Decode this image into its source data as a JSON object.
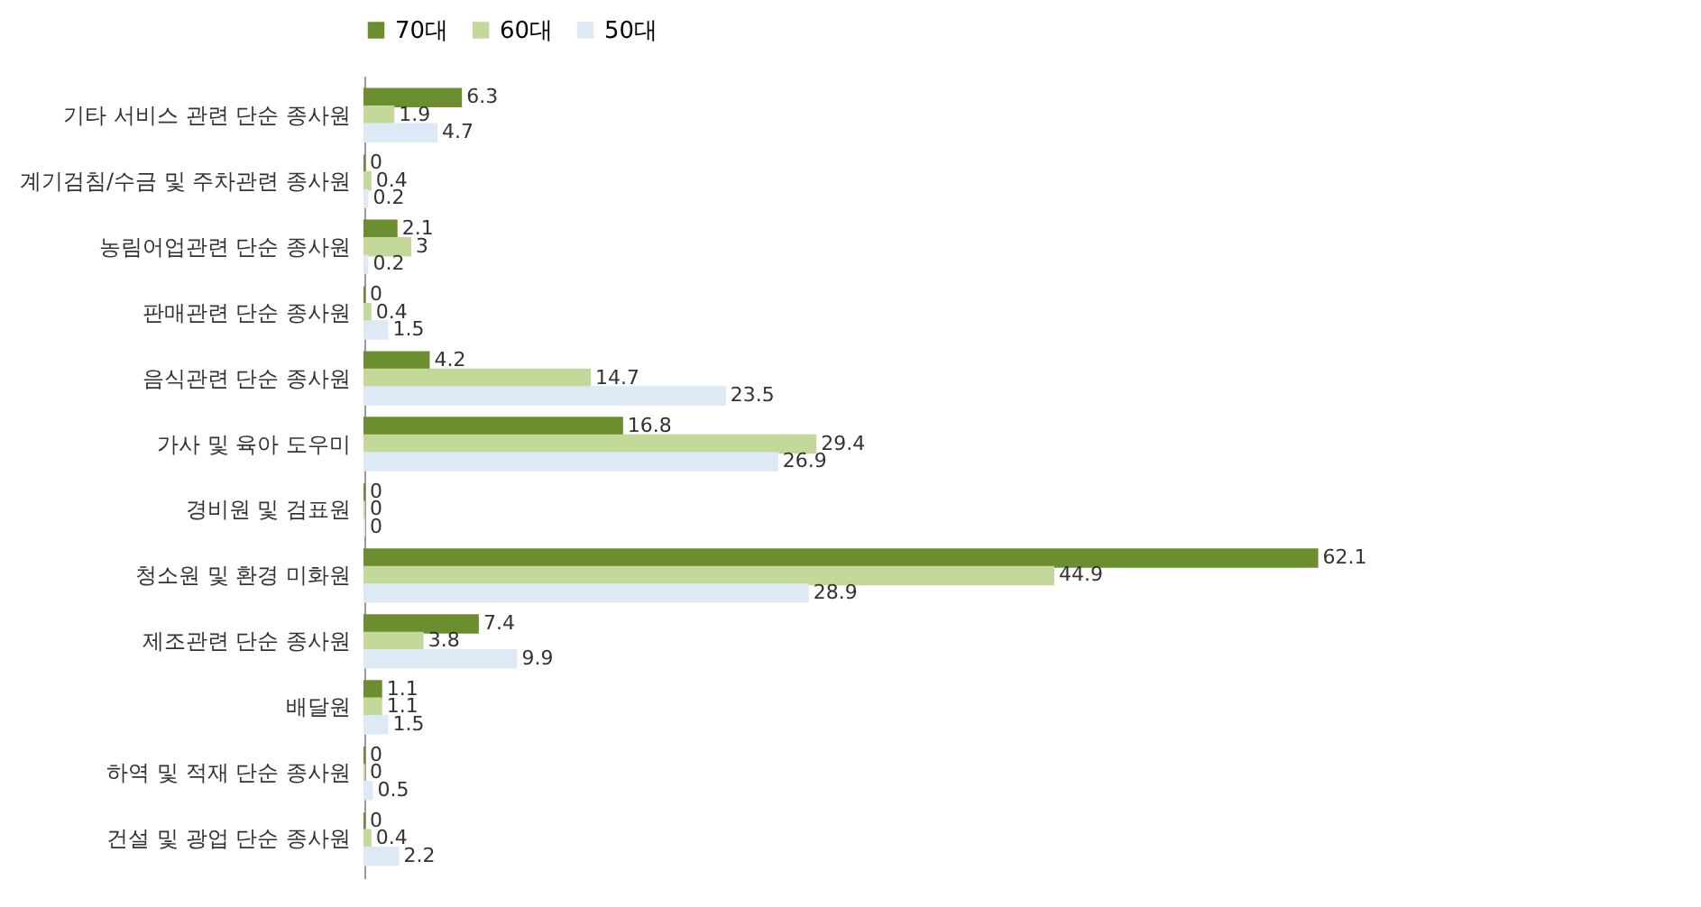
{
  "chart_data": {
    "type": "bar",
    "orientation": "horizontal",
    "data_labels": true,
    "legend": "top",
    "grid": false,
    "categories": [
      "기타 서비스 관련 단순 종사원",
      "계기검침/수금 및 주차관련 종사원",
      "농림어업관련 단순 종사원",
      "판매관련 단순 종사원",
      "음식관련 단순 종사원",
      "가사 및 육아 도우미",
      "경비원 및 검표원",
      "청소원 및 환경 미화원",
      "제조관련 단순 종사원",
      "배달원",
      "하역 및 적재 단순 종사원",
      "건설 및 광업 단순 종사원"
    ],
    "series": [
      {
        "name": "70대",
        "color": "#6b8e2e",
        "values": [
          6.3,
          0,
          2.1,
          0,
          4.2,
          16.8,
          0,
          62.1,
          7.4,
          1.1,
          0,
          0
        ]
      },
      {
        "name": "60대",
        "color": "#c4d89a",
        "values": [
          1.9,
          0.4,
          3,
          0.4,
          14.7,
          29.4,
          0,
          44.9,
          3.8,
          1.1,
          0,
          0.4
        ]
      },
      {
        "name": "50대",
        "color": "#dde9f5",
        "values": [
          4.7,
          0.2,
          0.2,
          1.5,
          23.5,
          26.9,
          0,
          28.9,
          9.9,
          1.5,
          0.5,
          2.2
        ]
      }
    ]
  }
}
